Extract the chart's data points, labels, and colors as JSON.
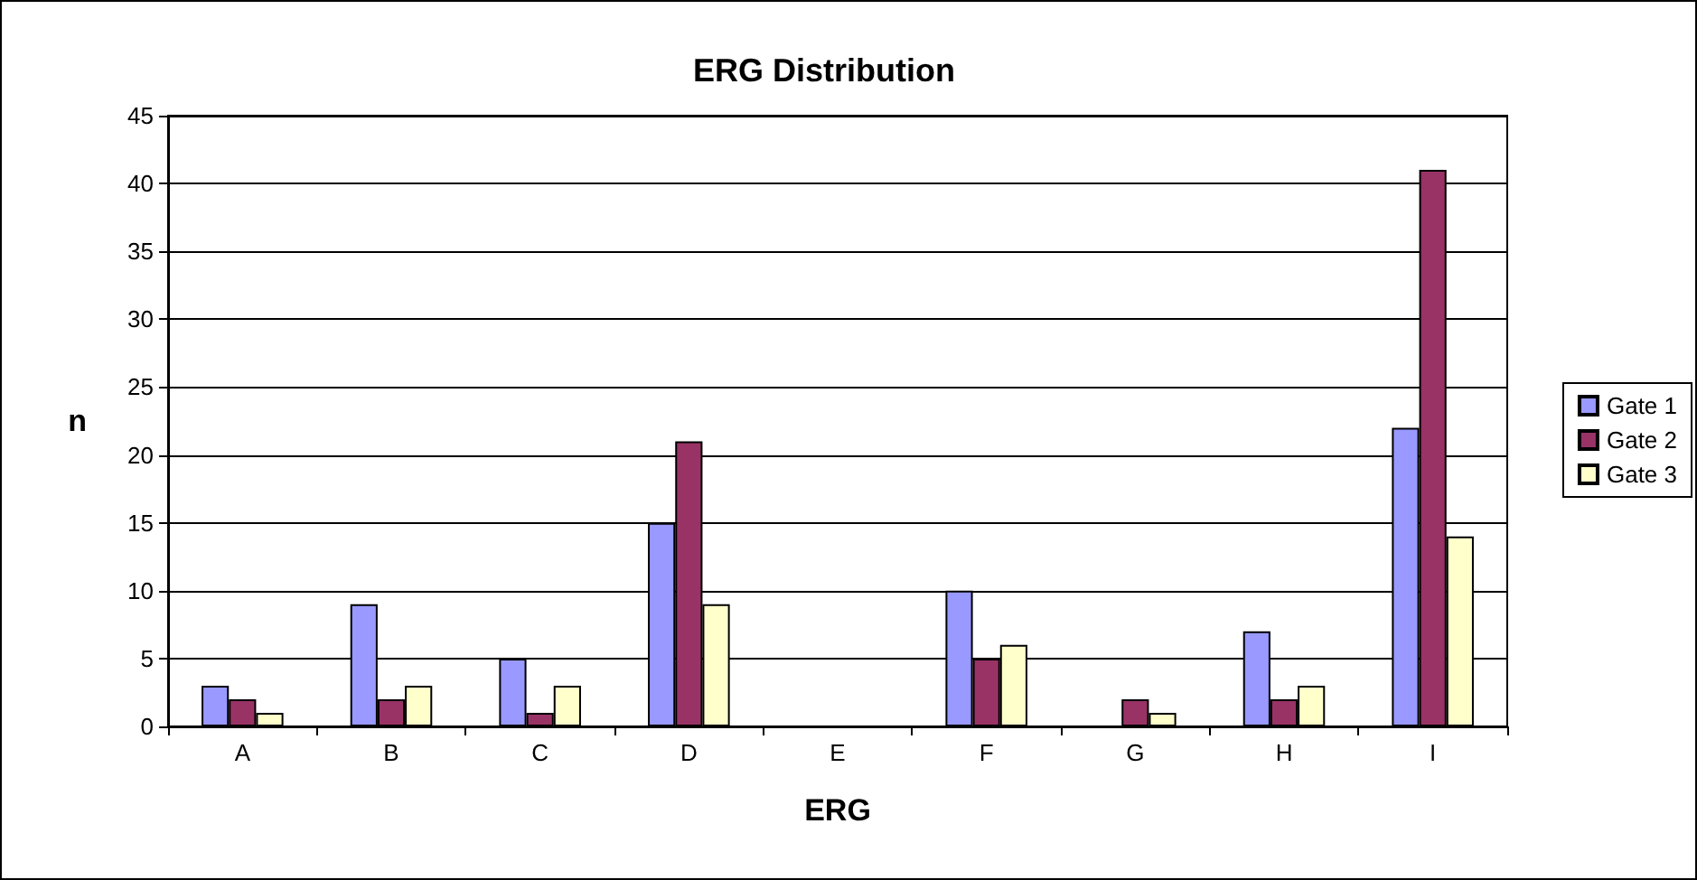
{
  "chart_data": {
    "type": "bar",
    "title": "ERG Distribution",
    "xlabel": "ERG",
    "ylabel": "n",
    "categories": [
      "A",
      "B",
      "C",
      "D",
      "E",
      "F",
      "G",
      "H",
      "I"
    ],
    "series": [
      {
        "name": "Gate 1",
        "color": "#9999ff",
        "values": [
          3,
          9,
          5,
          15,
          0,
          10,
          0,
          7,
          22
        ]
      },
      {
        "name": "Gate 2",
        "color": "#993366",
        "values": [
          2,
          2,
          1,
          21,
          0,
          5,
          2,
          2,
          41
        ]
      },
      {
        "name": "Gate 3",
        "color": "#ffffcc",
        "values": [
          1,
          3,
          3,
          9,
          0,
          6,
          1,
          3,
          14
        ]
      }
    ],
    "ylim": [
      0,
      45
    ],
    "yticks": [
      0,
      5,
      10,
      15,
      20,
      25,
      30,
      35,
      40,
      45
    ],
    "grid": "y",
    "legend": "right"
  }
}
